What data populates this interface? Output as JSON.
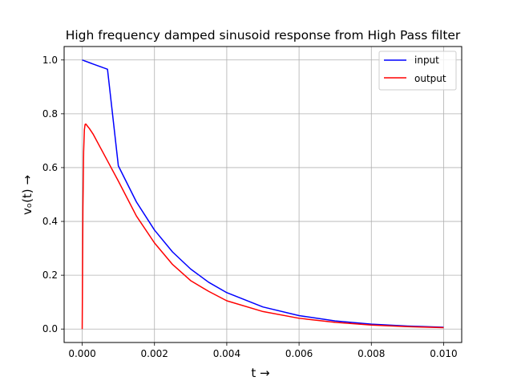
{
  "chart_data": {
    "type": "line",
    "title": "High frequency damped sinusoid response from High Pass filter",
    "xlabel": "t →",
    "ylabel": "vₒ(t) →",
    "xlim": [
      -0.0005,
      0.0105
    ],
    "ylim": [
      -0.05,
      1.05
    ],
    "xticks": [
      0.0,
      0.002,
      0.004,
      0.006,
      0.008,
      0.01
    ],
    "xtick_labels": [
      "0.000",
      "0.002",
      "0.004",
      "0.006",
      "0.008",
      "0.010"
    ],
    "yticks": [
      0.0,
      0.2,
      0.4,
      0.6,
      0.8,
      1.0
    ],
    "ytick_labels": [
      "0.0",
      "0.2",
      "0.4",
      "0.6",
      "0.8",
      "1.0"
    ],
    "grid": true,
    "legend_position": "upper right",
    "x": [
      0.0,
      2e-05,
      4e-05,
      6e-05,
      8e-05,
      0.0001,
      0.0002,
      0.0003,
      0.0005,
      0.0007,
      0.001,
      0.0015,
      0.002,
      0.0025,
      0.003,
      0.0035,
      0.004,
      0.005,
      0.006,
      0.007,
      0.008,
      0.009,
      0.01
    ],
    "series": [
      {
        "name": "input",
        "color": "#0000ff",
        "values": [
          1.0,
          0.999,
          0.998,
          0.997,
          0.996,
          0.995,
          0.99,
          0.9851,
          0.9753,
          0.9656,
          0.6066,
          0.4724,
          0.3679,
          0.2865,
          0.2231,
          0.1738,
          0.1353,
          0.0821,
          0.0498,
          0.0302,
          0.0183,
          0.0111,
          0.0067
        ]
      },
      {
        "name": "output",
        "color": "#ff0000",
        "values": [
          0.0,
          0.45,
          0.66,
          0.74,
          0.76,
          0.762,
          0.745,
          0.725,
          0.675,
          0.625,
          0.55,
          0.42,
          0.32,
          0.24,
          0.18,
          0.14,
          0.105,
          0.065,
          0.04,
          0.025,
          0.015,
          0.009,
          0.005
        ]
      }
    ]
  }
}
